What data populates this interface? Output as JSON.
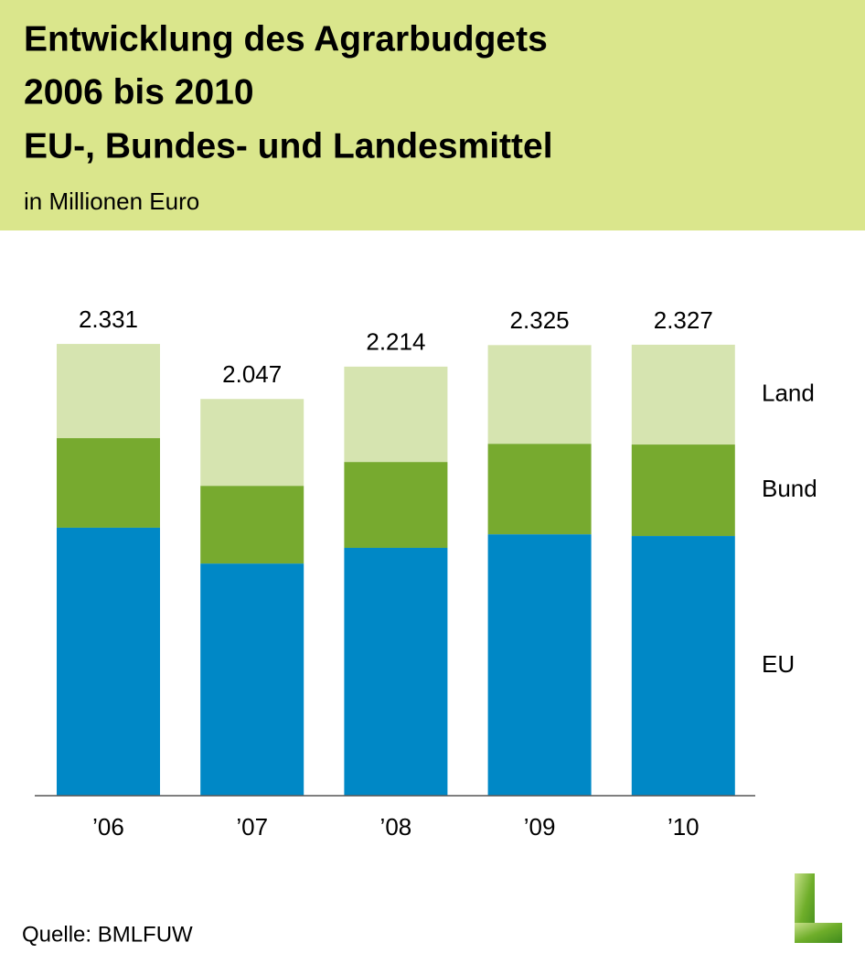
{
  "chart_data": {
    "type": "stacked-bar",
    "title": [
      "Entwicklung des Agrarbudgets",
      "2006 bis 2010",
      "EU-, Bundes- und Landesmittel"
    ],
    "subtitle": "in Millionen Euro",
    "source": "Quelle: BMLFUW",
    "categories": [
      "’06",
      "’07",
      "’08",
      "’09",
      "’10"
    ],
    "series": [
      {
        "name": "EU",
        "color": "#0088c6",
        "values": [
          1383,
          1198,
          1279,
          1349,
          1340
        ]
      },
      {
        "name": "Bund",
        "color": "#77aa2f",
        "values": [
          462,
          401,
          443,
          467,
          472
        ]
      },
      {
        "name": "Land",
        "color": "#d6e4b0",
        "values": [
          486,
          448,
          492,
          509,
          515
        ]
      }
    ],
    "totals": {
      "values": [
        2331,
        2047,
        2214,
        2325,
        2327
      ],
      "value_labels": [
        "2.331",
        "2.047",
        "2.214",
        "2.325",
        "2.327"
      ]
    }
  }
}
